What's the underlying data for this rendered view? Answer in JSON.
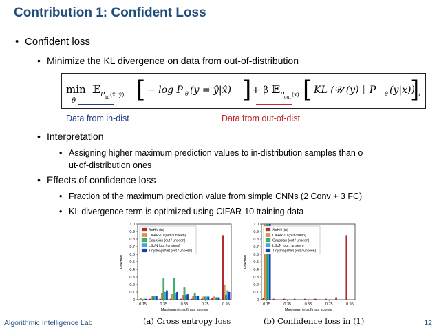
{
  "title": "Contribution 1: Confident Loss",
  "bullets": {
    "b1": "Confident loss",
    "b1_1": "Minimize the KL divergence on data from out-of-distribution",
    "b2": "Interpretation",
    "b2_1a": "Assigning higher maximum prediction values to in-distribution samples than o",
    "b2_1b": "ut-of-distribution ones",
    "b3": "Effects of confidence loss",
    "b3_1": "Fraction of the maximum prediction value from simple CNNs (2 Conv + 3 FC)",
    "b3_2": "KL divergence term is optimized using CIFAR-10 training data"
  },
  "formula": {
    "min": "min",
    "theta": "θ",
    "e1": "𝔼",
    "pin": "P",
    "pin_sub": "in",
    "pin_args": "(x̂, ŷ)",
    "term1": "− log P",
    "term1_sub": "θ",
    "term1_args": "(y = ŷ|x̂)",
    "plus_beta": "+ β",
    "e2": "𝔼",
    "pout_sub": "out",
    "pout_args": "(x)",
    "kl": "KL (𝒰 (y) ∥ P",
    "kl_sub": "θ",
    "kl_args": "(y|x))",
    "tail": ","
  },
  "captions": {
    "in_dist": "Data from in-dist",
    "out_dist": "Data from out-of-dist"
  },
  "colors": {
    "title": "#1f4e79",
    "in_dist": "#1e3c8c",
    "out_dist": "#c0282a"
  },
  "chart_data": [
    {
      "type": "bar",
      "subtitle": "(a) Cross entropy loss",
      "xlabel": "Maximum in softmax scores",
      "ylabel": "Fraction",
      "ylim": [
        0,
        1.0
      ],
      "yticks": [
        "0",
        "0.1",
        "0.2",
        "0.3",
        "0.4",
        "0.5",
        "0.6",
        "0.7",
        "0.8",
        "0.9",
        "1.0"
      ],
      "xticks": [
        "0.15",
        "0.35",
        "0.55",
        "0.75",
        "0.95"
      ],
      "categories": [
        "0.15",
        "0.25",
        "0.35",
        "0.45",
        "0.55",
        "0.65",
        "0.75",
        "0.85",
        "0.95"
      ],
      "legend_position": "top-left",
      "series": [
        {
          "name": "SVHN (in)",
          "color": "#c0282a",
          "values": [
            0.0,
            0.01,
            0.01,
            0.01,
            0.01,
            0.01,
            0.01,
            0.02,
            0.85
          ]
        },
        {
          "name": "CIFAR-10 (out / unseen)",
          "color": "#e8923a",
          "values": [
            0.02,
            0.04,
            0.08,
            0.07,
            0.06,
            0.05,
            0.04,
            0.04,
            0.19
          ]
        },
        {
          "name": "Gaussian (out / unseen)",
          "color": "#3cb46e",
          "values": [
            0.0,
            0.05,
            0.29,
            0.28,
            0.16,
            0.08,
            0.04,
            0.03,
            0.06
          ]
        },
        {
          "name": "LSUN (out / unseen)",
          "color": "#28b4dc",
          "values": [
            0.01,
            0.05,
            0.1,
            0.09,
            0.06,
            0.05,
            0.04,
            0.03,
            0.12
          ]
        },
        {
          "name": "TinyImageNet (out / unseen)",
          "color": "#1e3cc8",
          "values": [
            0.01,
            0.05,
            0.12,
            0.1,
            0.07,
            0.05,
            0.04,
            0.03,
            0.1
          ]
        }
      ]
    },
    {
      "type": "bar",
      "subtitle": "(b) Confidence loss in (1)",
      "xlabel": "Maximum in softmax scores",
      "ylabel": "Fraction",
      "ylim": [
        0,
        1.0
      ],
      "yticks": [
        "0",
        "0.1",
        "0.2",
        "0.3",
        "0.4",
        "0.5",
        "0.6",
        "0.7",
        "0.8",
        "0.9",
        "1.0"
      ],
      "xticks": [
        "0.15",
        "0.35",
        "0.55",
        "0.75",
        "0.95"
      ],
      "categories": [
        "0.15",
        "0.25",
        "0.35",
        "0.45",
        "0.55",
        "0.65",
        "0.75",
        "0.85",
        "0.95"
      ],
      "legend_position": "top-left",
      "series": [
        {
          "name": "SVHN (in)",
          "color": "#c0282a",
          "values": [
            0.02,
            0.01,
            0.01,
            0.01,
            0.01,
            0.01,
            0.01,
            0.03,
            0.85
          ]
        },
        {
          "name": "CIFAR-10 (out / seen)",
          "color": "#e8923a",
          "values": [
            1.0,
            0.0,
            0.0,
            0.0,
            0.0,
            0.0,
            0.0,
            0.0,
            0.0
          ]
        },
        {
          "name": "Gaussian (out / unseen)",
          "color": "#3cb46e",
          "values": [
            1.0,
            0.0,
            0.0,
            0.0,
            0.0,
            0.0,
            0.0,
            0.0,
            0.0
          ]
        },
        {
          "name": "LSUN (out / unseen)",
          "color": "#28b4dc",
          "values": [
            1.0,
            0.0,
            0.0,
            0.0,
            0.0,
            0.0,
            0.0,
            0.0,
            0.0
          ]
        },
        {
          "name": "TinyImageNet (out / unseen)",
          "color": "#1e3cc8",
          "values": [
            1.0,
            0.0,
            0.0,
            0.0,
            0.0,
            0.0,
            0.0,
            0.0,
            0.0
          ]
        }
      ]
    }
  ],
  "footer": {
    "lab": "Algorithmic Intelligence Lab",
    "page": "12"
  }
}
